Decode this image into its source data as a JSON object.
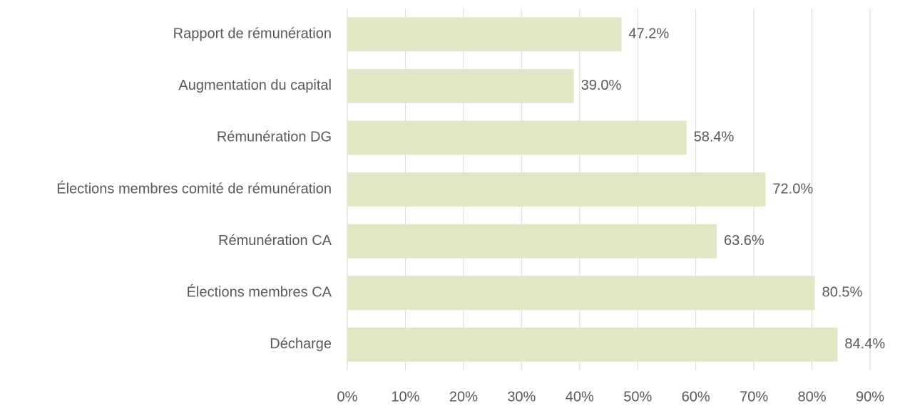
{
  "chart_data": {
    "type": "bar",
    "orientation": "horizontal",
    "categories": [
      "Rapport de rémunération",
      "Augmentation du capital",
      "Rémunération DG",
      "Élections membres comité de rémunération",
      "Rémunération CA",
      "Élections membres CA",
      "Décharge"
    ],
    "values": [
      47.2,
      39.0,
      58.4,
      72.0,
      63.6,
      80.5,
      84.4
    ],
    "value_labels": [
      "47.2%",
      "39.0%",
      "58.4%",
      "72.0%",
      "63.6%",
      "80.5%",
      "84.4%"
    ],
    "color": "#e2e6c4",
    "xlim": [
      0,
      90
    ],
    "xticks": [
      {
        "value": 0,
        "label": "0%"
      },
      {
        "value": 10,
        "label": "10%"
      },
      {
        "value": 20,
        "label": "20%"
      },
      {
        "value": 30,
        "label": "30%"
      },
      {
        "value": 40,
        "label": "40%"
      },
      {
        "value": 50,
        "label": "50%"
      },
      {
        "value": 60,
        "label": "60%"
      },
      {
        "value": 70,
        "label": "70%"
      },
      {
        "value": 80,
        "label": "80%"
      },
      {
        "value": 90,
        "label": "90%"
      }
    ],
    "grid": true
  }
}
